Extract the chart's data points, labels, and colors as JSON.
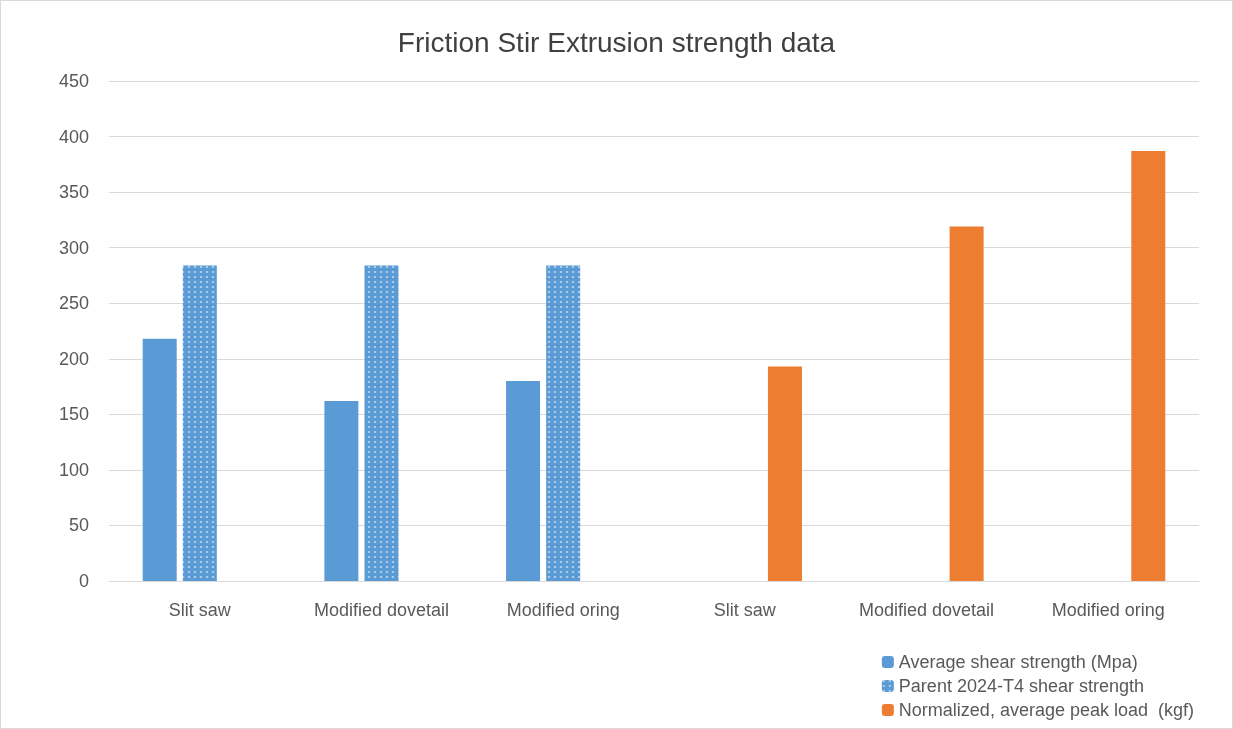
{
  "chart_data": {
    "type": "bar",
    "title": "Friction Stir Extrusion strength data",
    "categories": [
      "Slit saw",
      "Modified dovetail",
      "Modified oring",
      "Slit saw",
      "Modified dovetail",
      "Modified oring"
    ],
    "series": [
      {
        "name": "Average shear strength (Mpa)",
        "color": "#5b9bd5",
        "values": [
          218,
          162,
          180,
          null,
          null,
          null
        ]
      },
      {
        "name": "Parent 2024-T4 shear strength",
        "color": "#5b9bd5",
        "values": [
          284,
          284,
          284,
          null,
          null,
          null
        ]
      },
      {
        "name": "Normalized, average peak load  (kgf)",
        "color": "#ed7d31",
        "values": [
          null,
          null,
          null,
          193,
          319,
          387
        ]
      }
    ],
    "ylim": [
      0,
      450
    ],
    "yticks": [
      0,
      50,
      100,
      150,
      200,
      250,
      300,
      350,
      400,
      450
    ],
    "grid": "y",
    "legend": "bottom right"
  }
}
